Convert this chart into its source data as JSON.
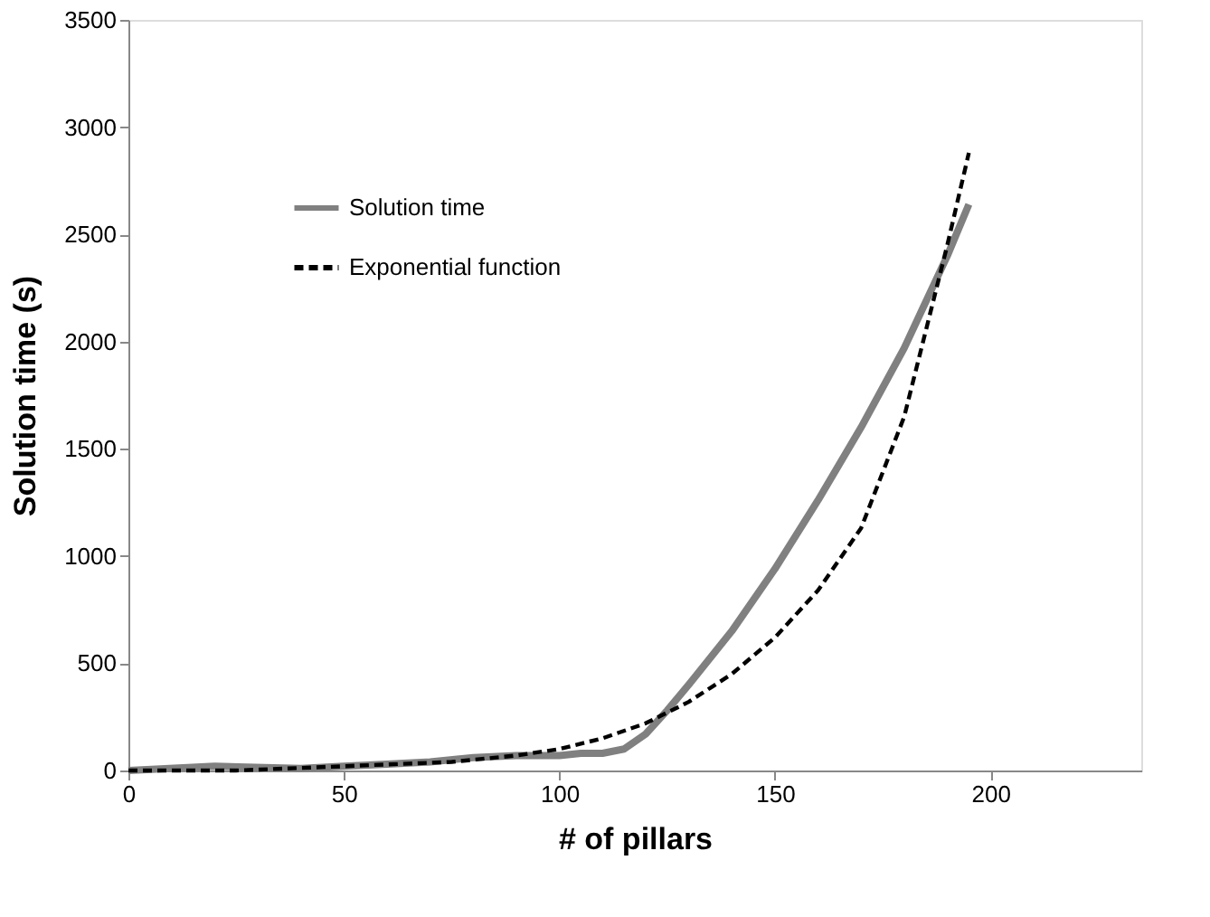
{
  "chart_data": {
    "type": "line",
    "xlabel": "# of pillars",
    "ylabel": "Solution time (s)",
    "xlim": [
      0,
      235
    ],
    "ylim": [
      0,
      3500
    ],
    "xticks": [
      0,
      50,
      100,
      150,
      200
    ],
    "yticks": [
      0,
      500,
      1000,
      1500,
      2000,
      2500,
      3000,
      3500
    ],
    "grid": false,
    "legend": "top left",
    "marker": "none",
    "series": [
      {
        "name": "Solution time",
        "color": "#808080",
        "line_style": "solid",
        "x": [
          0,
          20,
          40,
          50,
          60,
          70,
          80,
          90,
          100,
          105,
          110,
          115,
          120,
          125,
          130,
          140,
          150,
          160,
          170,
          180,
          190,
          195
        ],
        "values": [
          0,
          20,
          10,
          20,
          30,
          40,
          60,
          70,
          70,
          80,
          80,
          100,
          170,
          280,
          400,
          650,
          940,
          1260,
          1600,
          1970,
          2400,
          2640
        ]
      },
      {
        "name": "Exponential function",
        "color": "#000000",
        "line_style": "dashed",
        "x": [
          0,
          25,
          50,
          75,
          90,
          100,
          110,
          120,
          130,
          140,
          150,
          160,
          170,
          180,
          185,
          190,
          195
        ],
        "values": [
          0,
          0,
          20,
          40,
          70,
          100,
          150,
          220,
          320,
          450,
          620,
          840,
          1130,
          1650,
          2050,
          2450,
          2880
        ]
      }
    ]
  }
}
